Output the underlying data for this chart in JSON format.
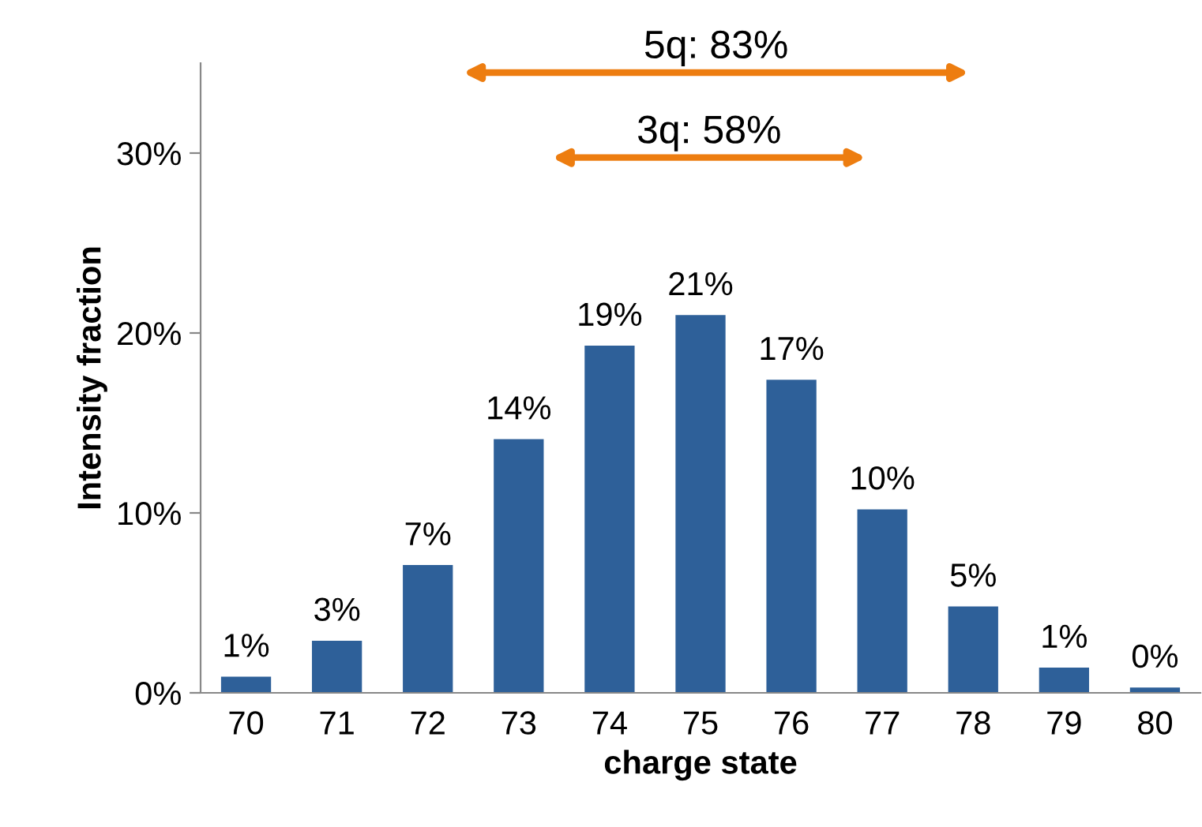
{
  "chart_data": {
    "type": "bar",
    "xlabel": "charge state",
    "ylabel": "Intensity fraction",
    "categories": [
      "70",
      "71",
      "72",
      "73",
      "74",
      "75",
      "76",
      "77",
      "78",
      "79",
      "80"
    ],
    "values": [
      0.9,
      2.9,
      7.1,
      14.1,
      19.3,
      21.0,
      17.4,
      10.2,
      4.8,
      1.4,
      0.3
    ],
    "value_labels": [
      "1%",
      "3%",
      "7%",
      "14%",
      "19%",
      "21%",
      "17%",
      "10%",
      "5%",
      "1%",
      "0%"
    ],
    "color": "#2e6099",
    "ylim": [
      0,
      35
    ],
    "yticks": [
      {
        "value": 0,
        "label": "0%"
      },
      {
        "value": 10,
        "label": "10%"
      },
      {
        "value": 20,
        "label": "20%"
      },
      {
        "value": 30,
        "label": "30%"
      }
    ],
    "annotations": [
      "5q: 83%",
      "3q: 58%"
    ],
    "grid": false,
    "legend": false
  }
}
